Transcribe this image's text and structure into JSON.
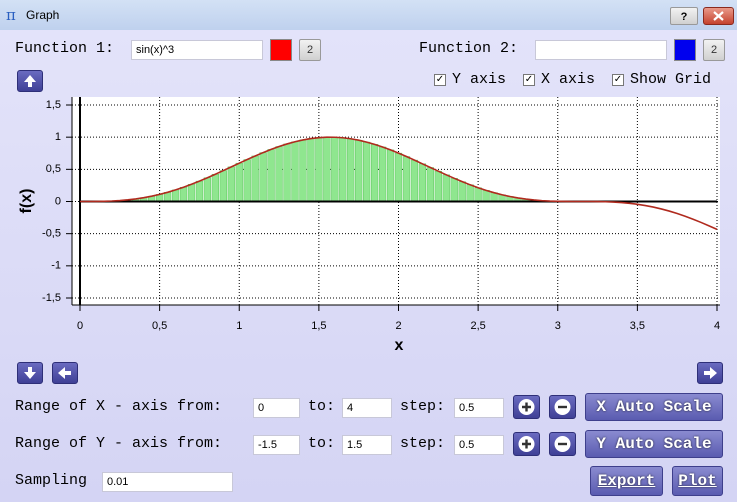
{
  "window": {
    "title": "Graph",
    "help": "?"
  },
  "controls": {
    "function_1": {
      "label": "Function 1:",
      "expression": "sin(x)^3",
      "color": "#ff0000",
      "button": "2"
    },
    "function_2": {
      "label": "Function 2:",
      "expression": "",
      "color": "#0000ee",
      "button": "2"
    },
    "checkboxes": [
      {
        "label": "Y axis",
        "checked": true
      },
      {
        "label": "X axis",
        "checked": true
      },
      {
        "label": "Show Grid",
        "checked": true
      }
    ],
    "x_range": {
      "label": "Range of X - axis from:",
      "from": "0",
      "to_label": "to:",
      "to": "4",
      "step_label": "step:",
      "step": "0.5",
      "auto": "X Auto Scale"
    },
    "y_range": {
      "label": "Range of Y - axis from:",
      "from": "-1.5",
      "to_label": "to:",
      "to": "1.5",
      "step_label": "step:",
      "step": "0.5",
      "auto": "Y Auto Scale"
    },
    "sampling": {
      "label": "Sampling",
      "value": "0.01"
    },
    "export": "Export",
    "plot": "Plot"
  },
  "chart_data": {
    "type": "line",
    "x_label": "x",
    "y_label": "f(x)",
    "grid": true,
    "bars": true,
    "x": [
      0,
      0.05,
      0.1,
      0.15,
      0.2,
      0.25,
      0.3,
      0.35,
      0.4,
      0.45,
      0.5,
      0.55,
      0.6,
      0.65,
      0.7,
      0.75,
      0.8,
      0.85,
      0.9,
      0.95,
      1,
      1.05,
      1.1,
      1.15,
      1.2,
      1.25,
      1.3,
      1.35,
      1.4,
      1.45,
      1.5,
      1.55,
      1.6,
      1.65,
      1.7,
      1.75,
      1.8,
      1.85,
      1.9,
      1.95,
      2,
      2.05,
      2.1,
      2.15,
      2.2,
      2.25,
      2.3,
      2.35,
      2.4,
      2.45,
      2.5,
      2.55,
      2.6,
      2.65,
      2.7,
      2.75,
      2.8,
      2.85,
      2.9,
      2.95,
      3,
      3.05,
      3.1,
      3.15,
      3.2,
      3.25,
      3.3,
      3.35,
      3.4,
      3.45,
      3.5,
      3.55,
      3.6,
      3.65,
      3.7,
      3.75,
      3.8,
      3.85,
      3.9,
      3.95,
      4
    ],
    "series": [
      {
        "color": "#b02a1e",
        "bar_color": "#8fe68f",
        "values": [
          0,
          0.0001,
          0.001,
          0.0033,
          0.0078,
          0.0151,
          0.0258,
          0.0403,
          0.0591,
          0.0823,
          0.1102,
          0.1428,
          0.18,
          0.2217,
          0.2673,
          0.3167,
          0.3692,
          0.4241,
          0.4806,
          0.5382,
          0.5958,
          0.6526,
          0.7078,
          0.7606,
          0.8096,
          0.8547,
          0.8947,
          0.9288,
          0.9569,
          0.9783,
          0.9925,
          0.9994,
          0.9988,
          0.9907,
          0.9753,
          0.9528,
          0.9235,
          0.8883,
          0.8474,
          0.8018,
          0.7518,
          0.6988,
          0.6432,
          0.5862,
          0.5285,
          0.4711,
          0.4147,
          0.3602,
          0.3082,
          0.2595,
          0.2144,
          0.1735,
          0.137,
          0.1052,
          0.0781,
          0.0556,
          0.0376,
          0.0238,
          0.0137,
          0.0069,
          0.0028,
          0.0008,
          0.0001,
          0,
          -0.0002,
          -0.0013,
          -0.0039,
          -0.0089,
          -0.0167,
          -0.028,
          -0.0432,
          -0.0626,
          -0.0867,
          -0.1154,
          -0.1487,
          -0.1868,
          -0.2291,
          -0.2754,
          -0.3254,
          -0.3782,
          -0.4334
        ]
      }
    ],
    "xlim": [
      0,
      4
    ],
    "ylim": [
      -1.5,
      1.5
    ],
    "xticks": [
      0,
      {
        "value": 0.5,
        "label": "0,5"
      },
      1,
      {
        "value": 1.5,
        "label": "1,5"
      },
      2,
      {
        "value": 2.5,
        "label": "2,5"
      },
      3,
      {
        "value": 3.5,
        "label": "3,5"
      },
      4
    ],
    "yticks": [
      {
        "value": -1.5,
        "label": "-1,5"
      },
      -1,
      {
        "value": -0.5,
        "label": "-0,5"
      },
      0,
      {
        "value": 0.5,
        "label": "0,5"
      },
      1,
      {
        "value": 1.5,
        "label": "1,5"
      }
    ]
  }
}
